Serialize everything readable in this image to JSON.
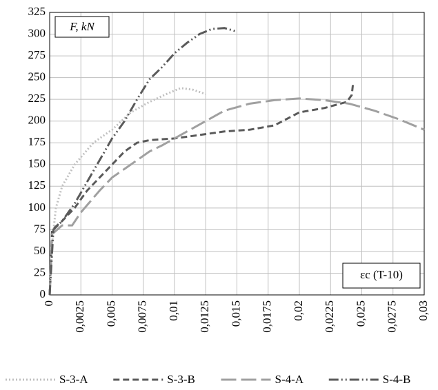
{
  "chart_data": {
    "type": "line",
    "y_label": "F, kN",
    "x_label": "εc (T-10)",
    "xlim": [
      0,
      0.03
    ],
    "xticks": [
      0,
      {
        "value": 0.0025,
        "label": "0,0025"
      },
      {
        "value": 0.005,
        "label": "0,005"
      },
      {
        "value": 0.0075,
        "label": "0,0075"
      },
      {
        "value": 0.01,
        "label": "0,01"
      },
      {
        "value": 0.0125,
        "label": "0,0125"
      },
      {
        "value": 0.015,
        "label": "0,015"
      },
      {
        "value": 0.0175,
        "label": "0,0175"
      },
      {
        "value": 0.02,
        "label": "0,02"
      },
      {
        "value": 0.0225,
        "label": "0,0225"
      },
      {
        "value": 0.025,
        "label": "0,025"
      },
      {
        "value": 0.0275,
        "label": "0,0275"
      },
      {
        "value": 0.03,
        "label": "0,03"
      }
    ],
    "ylim": [
      0,
      325
    ],
    "yticks": [
      0,
      25,
      50,
      75,
      100,
      125,
      150,
      175,
      200,
      225,
      250,
      275,
      300,
      325
    ],
    "grid": true,
    "legend": "bottom",
    "series": [
      {
        "name": "S-3-A",
        "color": "#c0c0c0",
        "dash": "2,3",
        "x": [
          0,
          0.0002,
          0.0005,
          0.001,
          0.002,
          0.0035,
          0.005,
          0.0065,
          0.008,
          0.0095,
          0.0105,
          0.0115,
          0.0125
        ],
        "values": [
          0,
          60,
          100,
          125,
          150,
          175,
          190,
          210,
          222,
          232,
          238,
          236,
          231
        ]
      },
      {
        "name": "S-3-B",
        "color": "#5a5a5a",
        "dash": "9,5",
        "x": [
          0,
          0.0002,
          0.001,
          0.002,
          0.003,
          0.004,
          0.005,
          0.006,
          0.007,
          0.008,
          0.01,
          0.012,
          0.014,
          0.016,
          0.018,
          0.02,
          0.022,
          0.0238,
          0.0242,
          0.0243
        ],
        "values": [
          0,
          75,
          85,
          100,
          120,
          135,
          150,
          165,
          175,
          178,
          180,
          184,
          188,
          190,
          195,
          210,
          215,
          222,
          230,
          243
        ]
      },
      {
        "name": "S-4-A",
        "color": "#a0a0a0",
        "dash": "22,7",
        "x": [
          0,
          0.0002,
          0.001,
          0.0018,
          0.0025,
          0.004,
          0.005,
          0.006,
          0.007,
          0.008,
          0.009,
          0.01,
          0.011,
          0.0125,
          0.014,
          0.016,
          0.018,
          0.02,
          0.022,
          0.024,
          0.026,
          0.028,
          0.03
        ],
        "values": [
          0,
          70,
          80,
          80,
          95,
          120,
          135,
          145,
          155,
          165,
          172,
          180,
          188,
          200,
          212,
          220,
          224,
          226,
          224,
          220,
          212,
          202,
          190
        ]
      },
      {
        "name": "S-4-B",
        "color": "#5a5a5a",
        "dash": "14,4,2,4,2,4",
        "x": [
          0,
          0.0003,
          0.001,
          0.002,
          0.003,
          0.004,
          0.005,
          0.006,
          0.007,
          0.008,
          0.009,
          0.01,
          0.011,
          0.012,
          0.013,
          0.014,
          0.015
        ],
        "values": [
          0,
          75,
          85,
          105,
          130,
          155,
          180,
          200,
          225,
          248,
          262,
          278,
          290,
          300,
          306,
          307,
          303
        ]
      }
    ]
  }
}
